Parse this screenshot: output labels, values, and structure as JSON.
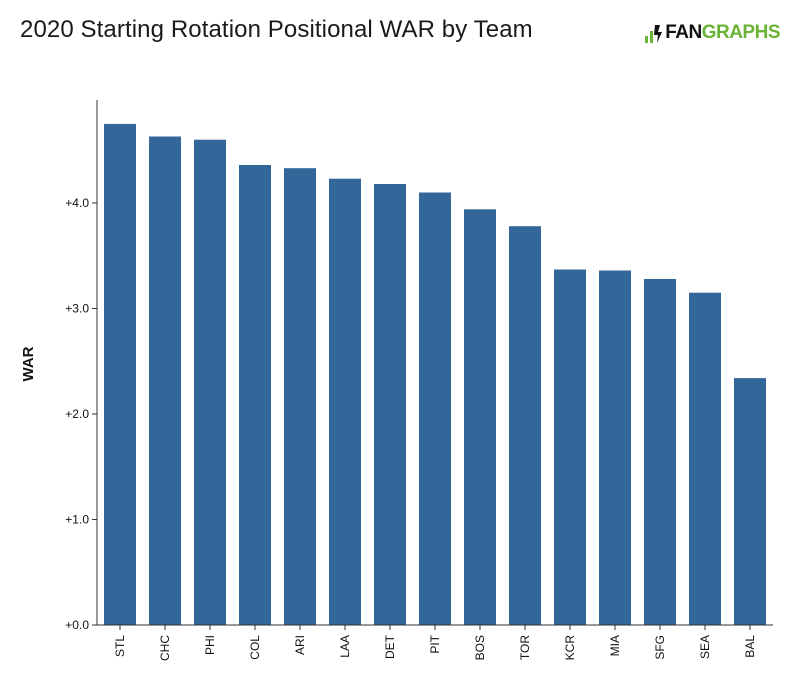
{
  "header": {
    "title": "2020 Starting Rotation Positional WAR by Team",
    "logo_fan": "FAN",
    "logo_graphs": "GRAPHS"
  },
  "colors": {
    "bar": "#336699",
    "axis": "#333333",
    "logo_green": "#6bb335"
  },
  "chart_data": {
    "type": "bar",
    "title": "2020 Starting Rotation Positional WAR by Team",
    "xlabel": "",
    "ylabel": "WAR",
    "categories": [
      "STL",
      "CHC",
      "PHI",
      "COL",
      "ARI",
      "LAA",
      "DET",
      "PIT",
      "BOS",
      "TOR",
      "KCR",
      "MIA",
      "SFG",
      "SEA",
      "BAL"
    ],
    "values": [
      4.75,
      4.63,
      4.6,
      4.36,
      4.33,
      4.23,
      4.18,
      4.1,
      3.94,
      3.78,
      3.37,
      3.36,
      3.28,
      3.15,
      2.34
    ],
    "ylim": [
      0,
      5
    ],
    "yticks": [
      0,
      1,
      2,
      3,
      4
    ],
    "ytick_labels": [
      "+0.0",
      "+1.0",
      "+2.0",
      "+3.0",
      "+4.0"
    ],
    "grid": false,
    "legend": "none"
  }
}
